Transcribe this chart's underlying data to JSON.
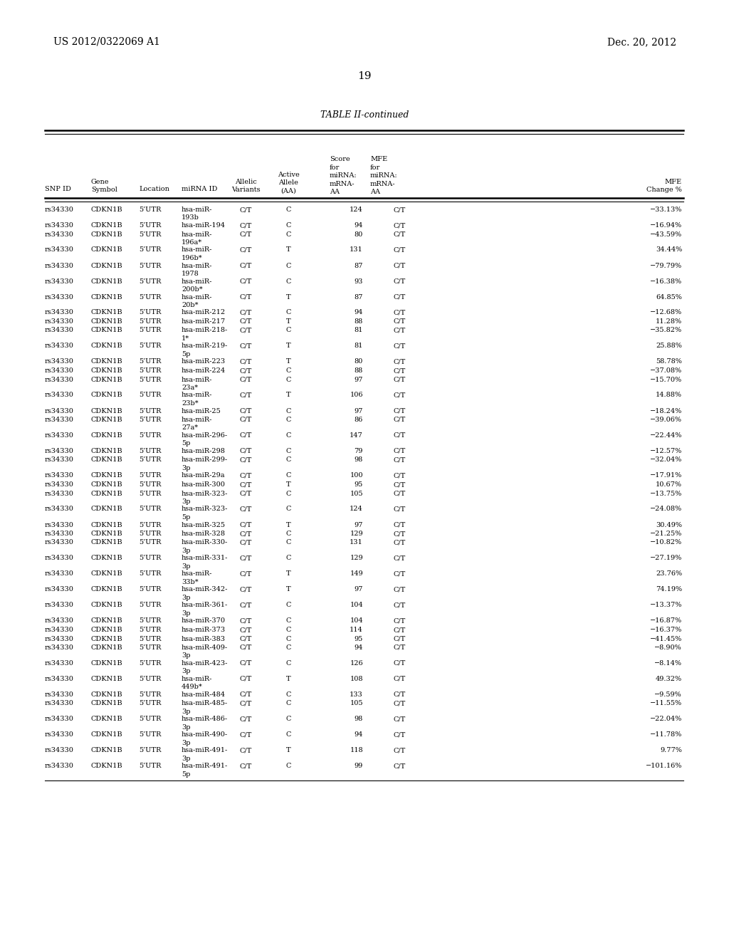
{
  "patent_number": "US 2012/0322069 A1",
  "date": "Dec. 20, 2012",
  "page_number": "19",
  "table_title": "TABLE II-continued",
  "rows": [
    [
      "rs34330",
      "CDKN1B",
      "5’UTR",
      "hsa-miR-\n193b",
      "C/T",
      "C",
      "124",
      "C/T",
      "−33.13%"
    ],
    [
      "rs34330",
      "CDKN1B",
      "5’UTR",
      "hsa-miR-194",
      "C/T",
      "C",
      "94",
      "C/T",
      "−16.94%"
    ],
    [
      "rs34330",
      "CDKN1B",
      "5’UTR",
      "hsa-miR-\n196a*",
      "C/T",
      "C",
      "80",
      "C/T",
      "−43.59%"
    ],
    [
      "rs34330",
      "CDKN1B",
      "5’UTR",
      "hsa-miR-\n196b*",
      "C/T",
      "T",
      "131",
      "C/T",
      "34.44%"
    ],
    [
      "rs34330",
      "CDKN1B",
      "5’UTR",
      "hsa-miR-\n1978",
      "C/T",
      "C",
      "87",
      "C/T",
      "−79.79%"
    ],
    [
      "rs34330",
      "CDKN1B",
      "5’UTR",
      "hsa-miR-\n200b*",
      "C/T",
      "C",
      "93",
      "C/T",
      "−16.38%"
    ],
    [
      "rs34330",
      "CDKN1B",
      "5’UTR",
      "hsa-miR-\n20b*",
      "C/T",
      "T",
      "87",
      "C/T",
      "64.85%"
    ],
    [
      "rs34330",
      "CDKN1B",
      "5’UTR",
      "hsa-miR-212",
      "C/T",
      "C",
      "94",
      "C/T",
      "−12.68%"
    ],
    [
      "rs34330",
      "CDKN1B",
      "5’UTR",
      "hsa-miR-217",
      "C/T",
      "T",
      "88",
      "C/T",
      "11.28%"
    ],
    [
      "rs34330",
      "CDKN1B",
      "5’UTR",
      "hsa-miR-218-\n1*",
      "C/T",
      "C",
      "81",
      "C/T",
      "−35.82%"
    ],
    [
      "rs34330",
      "CDKN1B",
      "5’UTR",
      "hsa-miR-219-\n5p",
      "C/T",
      "T",
      "81",
      "C/T",
      "25.88%"
    ],
    [
      "rs34330",
      "CDKN1B",
      "5’UTR",
      "hsa-miR-223",
      "C/T",
      "T",
      "80",
      "C/T",
      "58.78%"
    ],
    [
      "rs34330",
      "CDKN1B",
      "5’UTR",
      "hsa-miR-224",
      "C/T",
      "C",
      "88",
      "C/T",
      "−37.08%"
    ],
    [
      "rs34330",
      "CDKN1B",
      "5’UTR",
      "hsa-miR-\n23a*",
      "C/T",
      "C",
      "97",
      "C/T",
      "−15.70%"
    ],
    [
      "rs34330",
      "CDKN1B",
      "5’UTR",
      "hsa-miR-\n23b*",
      "C/T",
      "T",
      "106",
      "C/T",
      "14.88%"
    ],
    [
      "rs34330",
      "CDKN1B",
      "5’UTR",
      "hsa-miR-25",
      "C/T",
      "C",
      "97",
      "C/T",
      "−18.24%"
    ],
    [
      "rs34330",
      "CDKN1B",
      "5’UTR",
      "hsa-miR-\n27a*",
      "C/T",
      "C",
      "86",
      "C/T",
      "−39.06%"
    ],
    [
      "rs34330",
      "CDKN1B",
      "5’UTR",
      "hsa-miR-296-\n5p",
      "C/T",
      "C",
      "147",
      "C/T",
      "−22.44%"
    ],
    [
      "rs34330",
      "CDKN1B",
      "5’UTR",
      "hsa-miR-298",
      "C/T",
      "C",
      "79",
      "C/T",
      "−12.57%"
    ],
    [
      "rs34330",
      "CDKN1B",
      "5’UTR",
      "hsa-miR-299-\n3p",
      "C/T",
      "C",
      "98",
      "C/T",
      "−32.04%"
    ],
    [
      "rs34330",
      "CDKN1B",
      "5’UTR",
      "hsa-miR-29a",
      "C/T",
      "C",
      "100",
      "C/T",
      "−17.91%"
    ],
    [
      "rs34330",
      "CDKN1B",
      "5’UTR",
      "hsa-miR-300",
      "C/T",
      "T",
      "95",
      "C/T",
      "10.67%"
    ],
    [
      "rs34330",
      "CDKN1B",
      "5’UTR",
      "hsa-miR-323-\n3p",
      "C/T",
      "C",
      "105",
      "C/T",
      "−13.75%"
    ],
    [
      "rs34330",
      "CDKN1B",
      "5’UTR",
      "hsa-miR-323-\n5p",
      "C/T",
      "C",
      "124",
      "C/T",
      "−24.08%"
    ],
    [
      "rs34330",
      "CDKN1B",
      "5’UTR",
      "hsa-miR-325",
      "C/T",
      "T",
      "97",
      "C/T",
      "30.49%"
    ],
    [
      "rs34330",
      "CDKN1B",
      "5’UTR",
      "hsa-miR-328",
      "C/T",
      "C",
      "129",
      "C/T",
      "−21.25%"
    ],
    [
      "rs34330",
      "CDKN1B",
      "5’UTR",
      "hsa-miR-330-\n3p",
      "C/T",
      "C",
      "131",
      "C/T",
      "−10.82%"
    ],
    [
      "rs34330",
      "CDKN1B",
      "5’UTR",
      "hsa-miR-331-\n3p",
      "C/T",
      "C",
      "129",
      "C/T",
      "−27.19%"
    ],
    [
      "rs34330",
      "CDKN1B",
      "5’UTR",
      "hsa-miR-\n33b*",
      "C/T",
      "T",
      "149",
      "C/T",
      "23.76%"
    ],
    [
      "rs34330",
      "CDKN1B",
      "5’UTR",
      "hsa-miR-342-\n3p",
      "C/T",
      "T",
      "97",
      "C/T",
      "74.19%"
    ],
    [
      "rs34330",
      "CDKN1B",
      "5’UTR",
      "hsa-miR-361-\n3p",
      "C/T",
      "C",
      "104",
      "C/T",
      "−13.37%"
    ],
    [
      "rs34330",
      "CDKN1B",
      "5’UTR",
      "hsa-miR-370",
      "C/T",
      "C",
      "104",
      "C/T",
      "−16.87%"
    ],
    [
      "rs34330",
      "CDKN1B",
      "5’UTR",
      "hsa-miR-373",
      "C/T",
      "C",
      "114",
      "C/T",
      "−16.37%"
    ],
    [
      "rs34330",
      "CDKN1B",
      "5’UTR",
      "hsa-miR-383",
      "C/T",
      "C",
      "95",
      "C/T",
      "−41.45%"
    ],
    [
      "rs34330",
      "CDKN1B",
      "5’UTR",
      "hsa-miR-409-\n3p",
      "C/T",
      "C",
      "94",
      "C/T",
      "−8.90%"
    ],
    [
      "rs34330",
      "CDKN1B",
      "5’UTR",
      "hsa-miR-423-\n3p",
      "C/T",
      "C",
      "126",
      "C/T",
      "−8.14%"
    ],
    [
      "rs34330",
      "CDKN1B",
      "5’UTR",
      "hsa-miR-\n449b*",
      "C/T",
      "T",
      "108",
      "C/T",
      "49.32%"
    ],
    [
      "rs34330",
      "CDKN1B",
      "5’UTR",
      "hsa-miR-484",
      "C/T",
      "C",
      "133",
      "C/T",
      "−9.59%"
    ],
    [
      "rs34330",
      "CDKN1B",
      "5’UTR",
      "hsa-miR-485-\n3p",
      "C/T",
      "C",
      "105",
      "C/T",
      "−11.55%"
    ],
    [
      "rs34330",
      "CDKN1B",
      "5’UTR",
      "hsa-miR-486-\n3p",
      "C/T",
      "C",
      "98",
      "C/T",
      "−22.04%"
    ],
    [
      "rs34330",
      "CDKN1B",
      "5’UTR",
      "hsa-miR-490-\n3p",
      "C/T",
      "C",
      "94",
      "C/T",
      "−11.78%"
    ],
    [
      "rs34330",
      "CDKN1B",
      "5’UTR",
      "hsa-miR-491-\n3p",
      "C/T",
      "T",
      "118",
      "C/T",
      "9.77%"
    ],
    [
      "rs34330",
      "CDKN1B",
      "5’UTR",
      "hsa-miR-491-\n5p",
      "C/T",
      "C",
      "99",
      "C/T",
      "−101.16%"
    ]
  ],
  "bg_color": "#ffffff",
  "text_color": "#000000",
  "font_size": 7.0,
  "header_font_size": 7.0
}
